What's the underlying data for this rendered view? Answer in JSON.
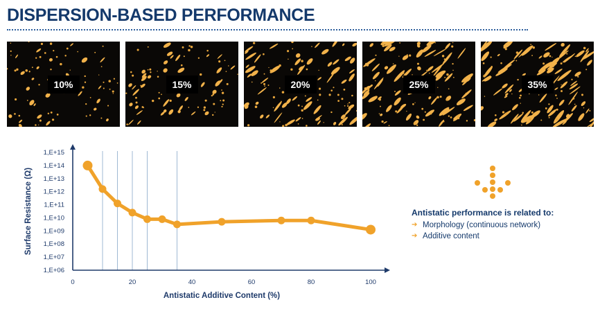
{
  "header": {
    "title": "DISPERSION-BASED PERFORMANCE"
  },
  "micrographs": [
    {
      "label": "10%"
    },
    {
      "label": "15%"
    },
    {
      "label": "20%"
    },
    {
      "label": "25%"
    },
    {
      "label": "35%"
    }
  ],
  "legend": {
    "title": "Antistatic performance is related to:",
    "items": [
      "Morphology (continuous network)",
      "Additive content"
    ]
  },
  "colors": {
    "accent": "#f0a22a",
    "navy": "#14396b",
    "gridline": "#9fb8d3"
  },
  "chart_data": {
    "type": "line",
    "xlabel": "Antistatic Additive Content (%)",
    "ylabel": "Surface Resistance (Ω)",
    "xlim": [
      0,
      100
    ],
    "x_ticks": [
      0,
      20,
      40,
      60,
      80,
      100
    ],
    "y_scale": "log",
    "ylim_exponent": [
      6,
      15
    ],
    "y_tick_labels": [
      "1,E+06",
      "1,E+07",
      "1,E+08",
      "1,E+09",
      "1,E+10",
      "1,E+11",
      "1,E+12",
      "1,E+13",
      "1,E+14",
      "1,E+15"
    ],
    "vertical_reference_lines_x": [
      10,
      15,
      20,
      25,
      35
    ],
    "series": [
      {
        "x": [
          5,
          10,
          15,
          20,
          25,
          30,
          35,
          50,
          70,
          80,
          100
        ],
        "log10_y": [
          14.0,
          12.2,
          11.1,
          10.4,
          9.9,
          9.9,
          9.5,
          9.7,
          9.8,
          9.8,
          9.1
        ]
      }
    ]
  }
}
